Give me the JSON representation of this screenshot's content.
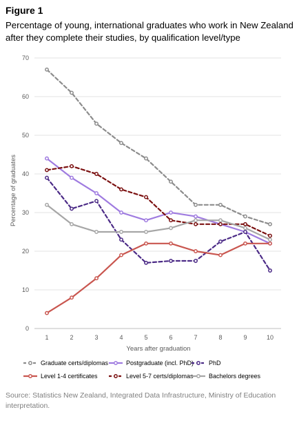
{
  "figure": {
    "label": "Figure 1",
    "title": "Percentage of young, international graduates who work in New Zealand after they complete their studies, by qualification level/type",
    "source": "Source: Statistics New Zealand, Integrated Data Infrastructure, Ministry of Education interpretation."
  },
  "chart_data": {
    "type": "line",
    "xlabel": "Years after graduation",
    "ylabel": "Percentage of graduates",
    "xlim": [
      1,
      10
    ],
    "ylim": [
      0,
      70
    ],
    "x": [
      1,
      2,
      3,
      4,
      5,
      6,
      7,
      8,
      9,
      10
    ],
    "x_ticks": [
      "1",
      "2",
      "3",
      "4",
      "5",
      "6",
      "7",
      "8",
      "9",
      "10"
    ],
    "y_ticks": [
      "0",
      "10",
      "20",
      "30",
      "40",
      "50",
      "60",
      "70"
    ],
    "grid": "horizontal",
    "legend_position": "bottom",
    "series": [
      {
        "name": "Graduate certs/diplomas",
        "color": "#8c8c8c",
        "dash": "dashed",
        "values": [
          67,
          61,
          53,
          48,
          44,
          38,
          32,
          32,
          29,
          27
        ]
      },
      {
        "name": "Postgraduate (incl. PhD)",
        "color": "#9f7be0",
        "dash": "solid",
        "values": [
          44,
          39,
          35,
          30,
          28,
          30,
          29,
          27,
          25,
          22
        ]
      },
      {
        "name": "PhD",
        "color": "#4b2a86",
        "dash": "dashed",
        "values": [
          39,
          31,
          33,
          23,
          17,
          17.5,
          17.5,
          22.5,
          25,
          15
        ]
      },
      {
        "name": "Level 1-4 certificates",
        "color": "#c9564f",
        "dash": "solid",
        "values": [
          4,
          8,
          13,
          19,
          22,
          22,
          20,
          19,
          22,
          22
        ]
      },
      {
        "name": "Level 5-7 certs/diplomas",
        "color": "#7b1010",
        "dash": "dashed",
        "values": [
          41,
          42,
          40,
          36,
          34,
          28,
          27,
          27,
          27,
          24
        ]
      },
      {
        "name": "Bachelors degrees",
        "color": "#a6a6a6",
        "dash": "solid",
        "values": [
          32,
          27,
          25,
          25,
          25,
          26,
          28,
          28,
          26,
          23
        ]
      }
    ]
  }
}
